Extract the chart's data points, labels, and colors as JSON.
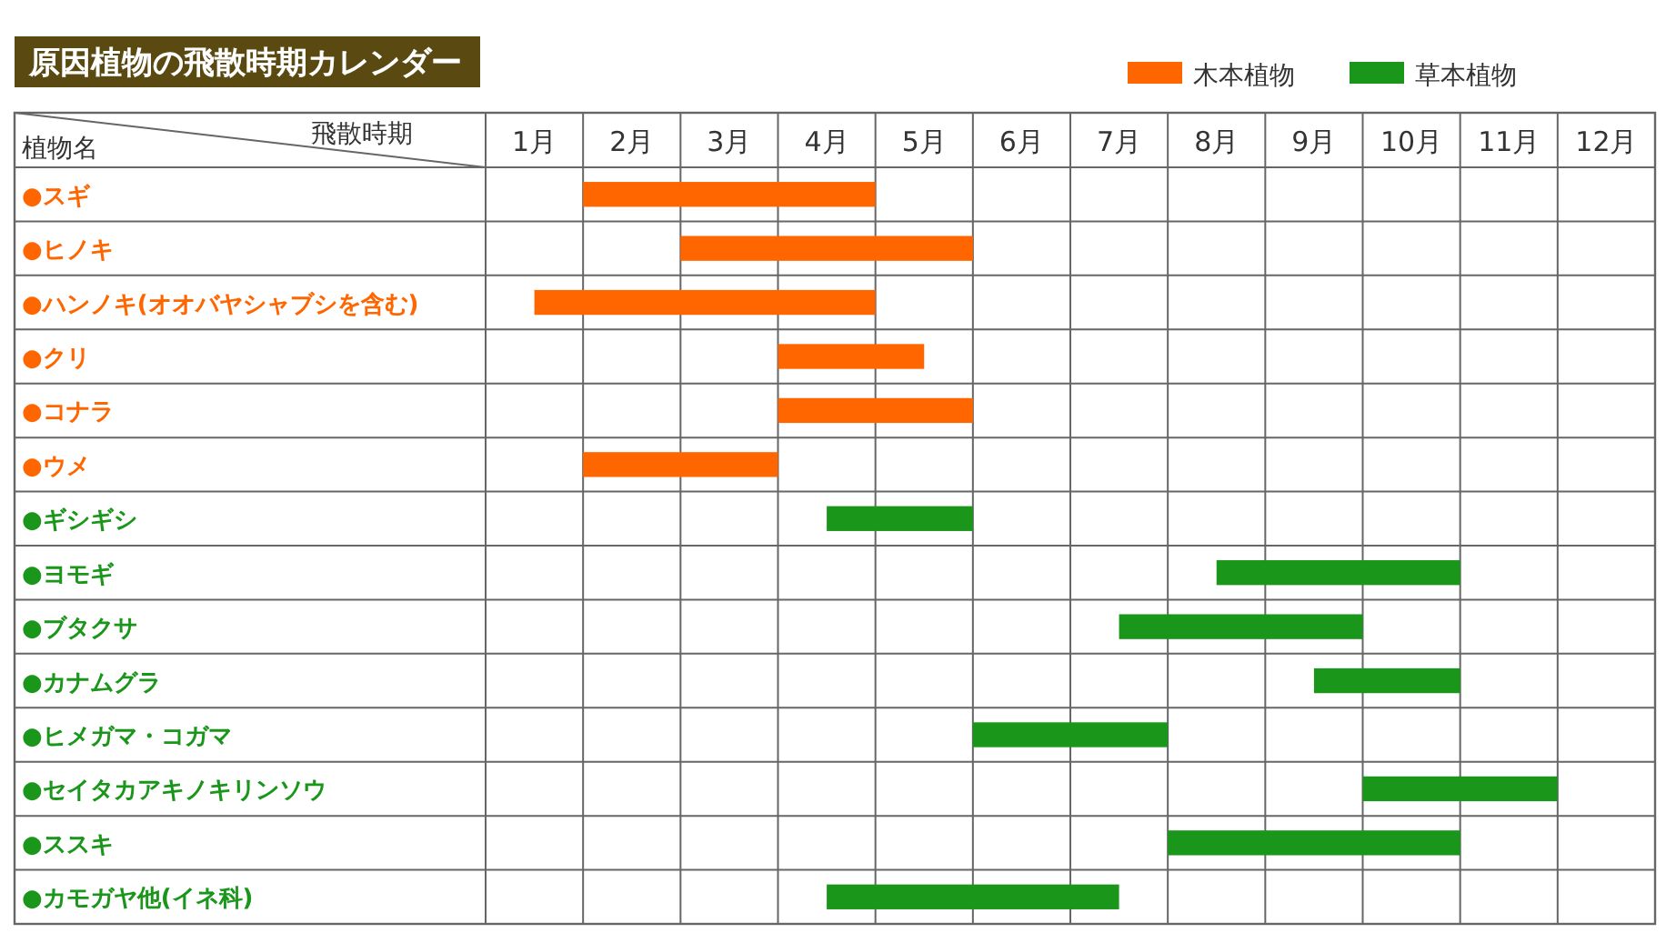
{
  "chart_data": {
    "type": "bar",
    "orientation": "horizontal",
    "title": "原因植物の飛散時期カレンダー",
    "ylabel": "植物名",
    "xlabel": "飛散時期",
    "categories": [
      "●スギ",
      "●ヒノキ",
      "●ハンノキ(オオバヤシャブシを含む)",
      "●クリ",
      "●コナラ",
      "●ウメ",
      "●ギシギシ",
      "●ヨモギ",
      "●ブタクサ",
      "●カナムグラ",
      "●ヒメガマ・コガマ",
      "●セイタカアキノキリンソウ",
      "●ススキ",
      "●カモガヤ他(イネ科)"
    ],
    "series": [
      {
        "name": "木本植物",
        "color": "#ff6600",
        "base": [
          1,
          2,
          0.5,
          3,
          3,
          1,
          null,
          null,
          null,
          null,
          null,
          null,
          null,
          null
        ],
        "values": [
          3,
          3,
          3.5,
          1.5,
          2,
          2,
          null,
          null,
          null,
          null,
          null,
          null,
          null,
          null
        ]
      },
      {
        "name": "草本植物",
        "color": "#1a961a",
        "base": [
          null,
          null,
          null,
          null,
          null,
          null,
          3.5,
          7.5,
          6.5,
          8.5,
          5,
          9,
          7,
          3.5
        ],
        "values": [
          null,
          null,
          null,
          null,
          null,
          null,
          1.5,
          2.5,
          2.5,
          1.5,
          2,
          2,
          3,
          3
        ]
      }
    ],
    "xlim": [
      0,
      12
    ],
    "xticks": [
      {
        "value": 0,
        "label": null
      },
      {
        "value": 0.5,
        "label": "1月"
      },
      {
        "value": 1,
        "label": null
      },
      {
        "value": 1.5,
        "label": "2月"
      },
      {
        "value": 2,
        "label": null
      },
      {
        "value": 2.5,
        "label": "3月"
      },
      {
        "value": 3,
        "label": null
      },
      {
        "value": 3.5,
        "label": "4月"
      },
      {
        "value": 4,
        "label": null
      },
      {
        "value": 4.5,
        "label": "5月"
      },
      {
        "value": 5,
        "label": null
      },
      {
        "value": 5.5,
        "label": "6月"
      },
      {
        "value": 6,
        "label": null
      },
      {
        "value": 6.5,
        "label": "7月"
      },
      {
        "value": 7,
        "label": null
      },
      {
        "value": 7.5,
        "label": "8月"
      },
      {
        "value": 8,
        "label": null
      },
      {
        "value": 8.5,
        "label": "9月"
      },
      {
        "value": 9,
        "label": null
      },
      {
        "value": 9.5,
        "label": "10月"
      },
      {
        "value": 10,
        "label": null
      },
      {
        "value": 10.5,
        "label": "11月"
      },
      {
        "value": 11,
        "label": null
      },
      {
        "value": 11.5,
        "label": "12月"
      },
      {
        "value": 12,
        "label": null
      }
    ],
    "grid": true,
    "legend": "top right"
  }
}
